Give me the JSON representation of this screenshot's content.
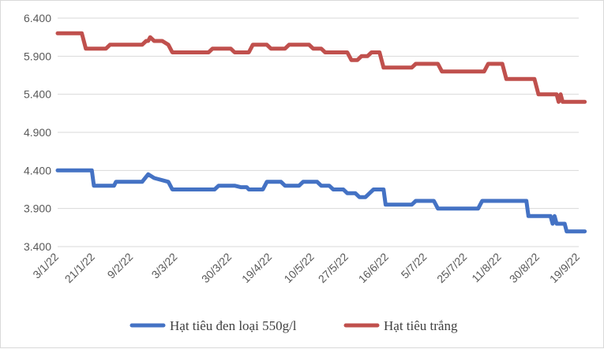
{
  "chart_data": {
    "type": "line",
    "title": "",
    "xlabel": "",
    "ylabel": "",
    "ylim": [
      3400,
      6400
    ],
    "yticks": [
      "3.400",
      "3.900",
      "4.400",
      "4.900",
      "5.400",
      "5.900",
      "6.400"
    ],
    "ytick_values": [
      3400,
      3900,
      4400,
      4900,
      5400,
      5900,
      6400
    ],
    "xticks": [
      "3/1/22",
      "21/1/22",
      "9/2/22",
      "3/3/22",
      "30/3/22",
      "19/4/22",
      "10/5/22",
      "27/5/22",
      "16/6/22",
      "5/7/22",
      "25/7/22",
      "11/8/22",
      "30/8/22",
      "19/9/22"
    ],
    "xtick_dates": [
      "2022-01-03",
      "2022-01-21",
      "2022-02-09",
      "2022-03-03",
      "2022-03-30",
      "2022-04-19",
      "2022-05-10",
      "2022-05-27",
      "2022-06-16",
      "2022-07-05",
      "2022-07-25",
      "2022-08-11",
      "2022-08-30",
      "2022-09-19"
    ],
    "grid": "horizontal",
    "legend_position": "bottom",
    "series": [
      {
        "name": "Hạt tiêu đen loại 550g/l",
        "color": "#4472c4",
        "points": [
          [
            "2022-01-03",
            4400
          ],
          [
            "2022-01-20",
            4400
          ],
          [
            "2022-01-21",
            4200
          ],
          [
            "2022-01-31",
            4200
          ],
          [
            "2022-02-01",
            4250
          ],
          [
            "2022-02-14",
            4250
          ],
          [
            "2022-02-17",
            4350
          ],
          [
            "2022-02-20",
            4300
          ],
          [
            "2022-02-27",
            4250
          ],
          [
            "2022-03-01",
            4150
          ],
          [
            "2022-03-22",
            4150
          ],
          [
            "2022-03-24",
            4200
          ],
          [
            "2022-04-01",
            4200
          ],
          [
            "2022-04-04",
            4180
          ],
          [
            "2022-04-07",
            4180
          ],
          [
            "2022-04-08",
            4150
          ],
          [
            "2022-04-15",
            4150
          ],
          [
            "2022-04-17",
            4250
          ],
          [
            "2022-04-24",
            4250
          ],
          [
            "2022-04-26",
            4200
          ],
          [
            "2022-05-03",
            4200
          ],
          [
            "2022-05-05",
            4250
          ],
          [
            "2022-05-12",
            4250
          ],
          [
            "2022-05-14",
            4200
          ],
          [
            "2022-05-18",
            4200
          ],
          [
            "2022-05-20",
            4150
          ],
          [
            "2022-05-25",
            4150
          ],
          [
            "2022-05-27",
            4100
          ],
          [
            "2022-05-31",
            4100
          ],
          [
            "2022-06-02",
            4050
          ],
          [
            "2022-06-05",
            4050
          ],
          [
            "2022-06-07",
            4100
          ],
          [
            "2022-06-09",
            4150
          ],
          [
            "2022-06-14",
            4150
          ],
          [
            "2022-06-15",
            3950
          ],
          [
            "2022-06-28",
            3950
          ],
          [
            "2022-06-30",
            4000
          ],
          [
            "2022-07-09",
            4000
          ],
          [
            "2022-07-11",
            3900
          ],
          [
            "2022-07-31",
            3900
          ],
          [
            "2022-08-02",
            4000
          ],
          [
            "2022-08-24",
            4000
          ],
          [
            "2022-08-25",
            3800
          ],
          [
            "2022-09-05",
            3800
          ],
          [
            "2022-09-06",
            3700
          ],
          [
            "2022-09-07",
            3800
          ],
          [
            "2022-09-08",
            3700
          ],
          [
            "2022-09-12",
            3700
          ],
          [
            "2022-09-13",
            3600
          ],
          [
            "2022-09-22",
            3600
          ]
        ]
      },
      {
        "name": "Hạt tiêu trắng",
        "color": "#c0504d",
        "points": [
          [
            "2022-01-03",
            6200
          ],
          [
            "2022-01-15",
            6200
          ],
          [
            "2022-01-17",
            6000
          ],
          [
            "2022-01-27",
            6000
          ],
          [
            "2022-01-29",
            6050
          ],
          [
            "2022-02-14",
            6050
          ],
          [
            "2022-02-16",
            6100
          ],
          [
            "2022-02-17",
            6100
          ],
          [
            "2022-02-18",
            6150
          ],
          [
            "2022-02-20",
            6100
          ],
          [
            "2022-02-24",
            6100
          ],
          [
            "2022-02-27",
            6050
          ],
          [
            "2022-03-01",
            5950
          ],
          [
            "2022-03-19",
            5950
          ],
          [
            "2022-03-21",
            6000
          ],
          [
            "2022-03-30",
            6000
          ],
          [
            "2022-04-01",
            5950
          ],
          [
            "2022-04-08",
            5950
          ],
          [
            "2022-04-10",
            6050
          ],
          [
            "2022-04-17",
            6050
          ],
          [
            "2022-04-19",
            6000
          ],
          [
            "2022-04-26",
            6000
          ],
          [
            "2022-04-28",
            6050
          ],
          [
            "2022-05-08",
            6050
          ],
          [
            "2022-05-10",
            6000
          ],
          [
            "2022-05-14",
            6000
          ],
          [
            "2022-05-16",
            5950
          ],
          [
            "2022-05-27",
            5950
          ],
          [
            "2022-05-29",
            5850
          ],
          [
            "2022-06-01",
            5850
          ],
          [
            "2022-06-03",
            5900
          ],
          [
            "2022-06-06",
            5900
          ],
          [
            "2022-06-08",
            5950
          ],
          [
            "2022-06-12",
            5950
          ],
          [
            "2022-06-14",
            5750
          ],
          [
            "2022-06-28",
            5750
          ],
          [
            "2022-06-30",
            5800
          ],
          [
            "2022-07-11",
            5800
          ],
          [
            "2022-07-13",
            5700
          ],
          [
            "2022-08-03",
            5700
          ],
          [
            "2022-08-05",
            5800
          ],
          [
            "2022-08-12",
            5800
          ],
          [
            "2022-08-14",
            5600
          ],
          [
            "2022-08-28",
            5600
          ],
          [
            "2022-08-30",
            5400
          ],
          [
            "2022-09-08",
            5400
          ],
          [
            "2022-09-09",
            5300
          ],
          [
            "2022-09-10",
            5400
          ],
          [
            "2022-09-11",
            5300
          ],
          [
            "2022-09-22",
            5300
          ]
        ]
      }
    ]
  }
}
